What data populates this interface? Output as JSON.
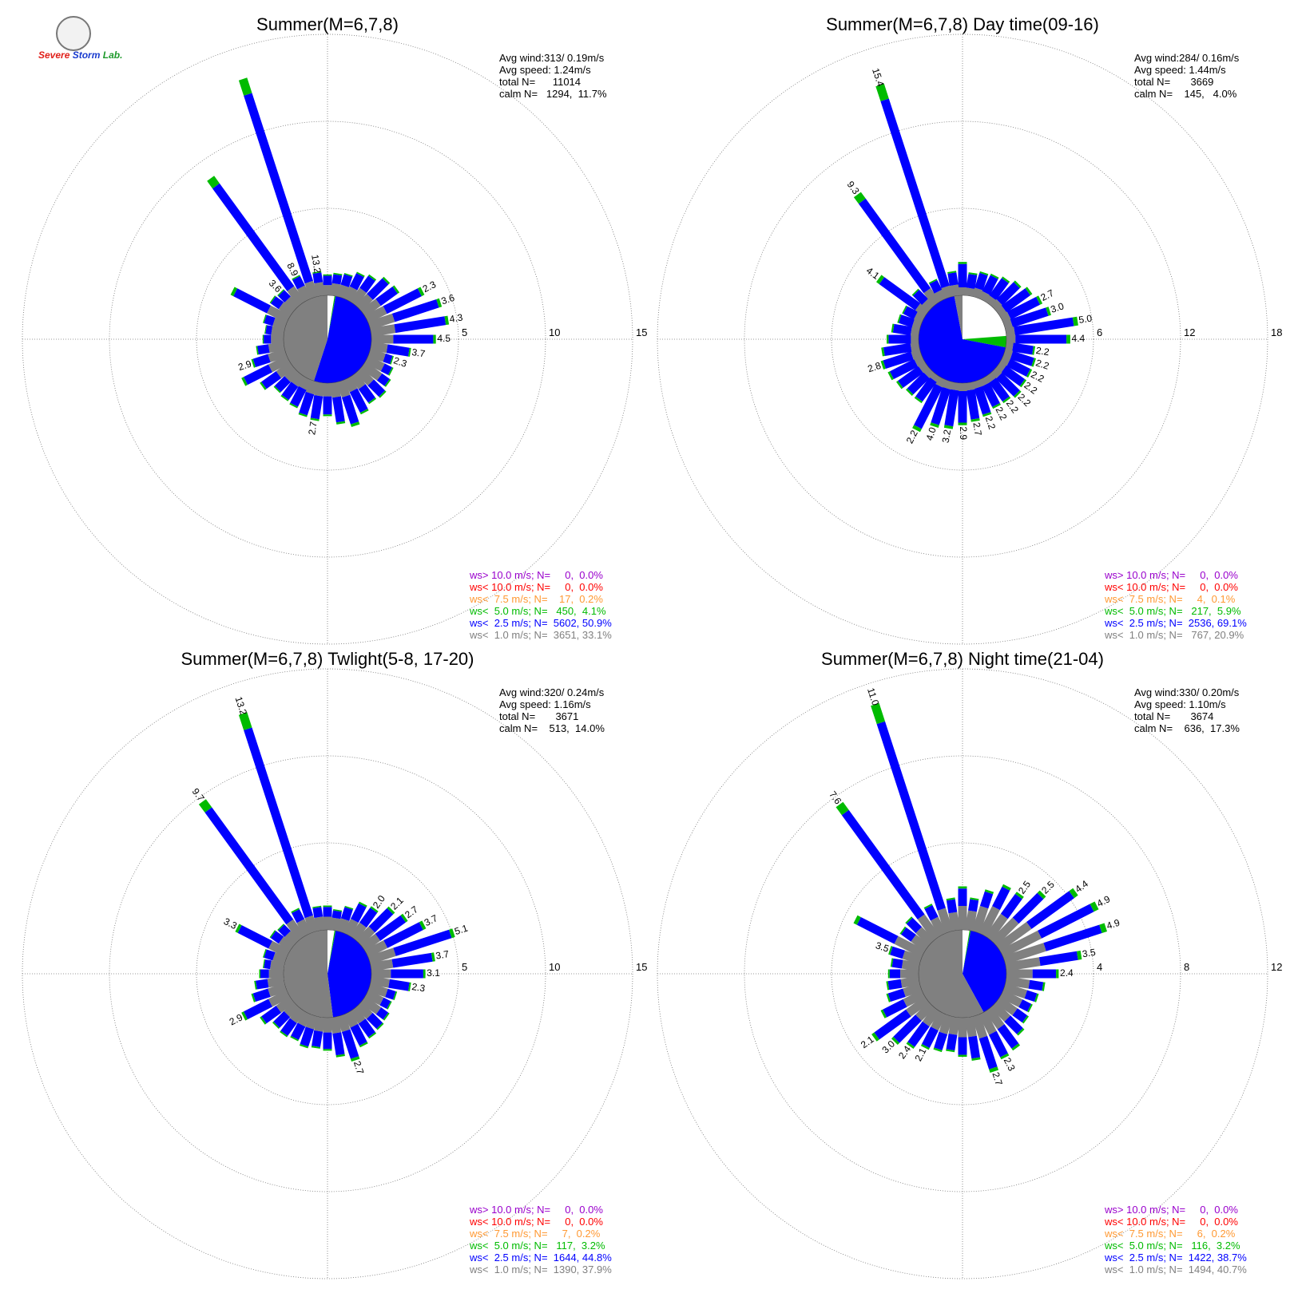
{
  "logo": {
    "text": "Severe Storm Lab.",
    "icon": "lab-seal-logo"
  },
  "colors": {
    "calm": "#808080",
    "cat1": "#808080",
    "cat2": "#0000ff",
    "cat3": "#00bb00",
    "cat4": "#ff9933",
    "cat5": "#ff0000",
    "cat6": "#9900cc",
    "grid": "#777777",
    "text": "#000000"
  },
  "chart_data": [
    {
      "type": "windrose",
      "title": "Summer(M=6,7,8)",
      "rmax": 15,
      "ring_ticks": [
        "5",
        "10",
        "15"
      ],
      "stats": [
        "Avg wind:313/ 0.19m/s",
        "Avg speed: 1.24m/s",
        "total N=      11014",
        "calm N=   1294,  11.7%"
      ],
      "legend": [
        {
          "text": "ws> 10.0 m/s; N=     0,  0.0%",
          "color": "#9900cc"
        },
        {
          "text": "ws< 10.0 m/s; N=     0,  0.0%",
          "color": "#ff0000"
        },
        {
          "text": "ws<  7.5 m/s; N=    17,  0.2%",
          "color": "#ff9933"
        },
        {
          "text": "ws<  5.0 m/s; N=   450,  4.1%",
          "color": "#00bb00"
        },
        {
          "text": "ws<  2.5 m/s; N=  5602, 50.9%",
          "color": "#0000ff"
        },
        {
          "text": "ws<  1.0 m/s; N=  3651, 33.1%",
          "color": "#808080"
        }
      ],
      "center_pie": [
        1.0,
        0.03,
        0.52,
        0.45
      ],
      "totals": [
        1.2,
        1.3,
        1.4,
        1.7,
        1.9,
        2.3,
        2.4,
        3.6,
        4.3,
        4.5,
        3.7,
        2.3,
        1.4,
        1.6,
        1.8,
        2.0,
        1.9,
        2.2,
        2.7,
        2.4,
        1.9,
        2.2,
        2.1,
        1.8,
        1.7,
        1.6,
        2.1,
        2.9,
        2.0,
        1.6,
        1.2,
        1.1,
        1.3,
        3.6,
        1.4,
        1.3,
        8.9,
        1.5,
        13.2,
        1.4
      ],
      "blue_frac": [
        0.45,
        0.4,
        0.45,
        0.5,
        0.45,
        0.55,
        0.5,
        0.62,
        0.62,
        0.65,
        0.62,
        0.55,
        0.3,
        0.3,
        0.3,
        0.45,
        0.5,
        0.6,
        0.6,
        0.6,
        0.55,
        0.6,
        0.6,
        0.6,
        0.55,
        0.5,
        0.5,
        0.55,
        0.45,
        0.4,
        0.35,
        0.3,
        0.4,
        0.6,
        0.4,
        0.4,
        0.82,
        0.4,
        0.86,
        0.4
      ],
      "green_frac": [
        0.06,
        0.06,
        0.05,
        0.05,
        0.05,
        0.05,
        0.05,
        0.05,
        0.04,
        0.04,
        0.04,
        0.04,
        0.05,
        0.05,
        0.05,
        0.05,
        0.05,
        0.05,
        0.06,
        0.05,
        0.05,
        0.05,
        0.05,
        0.05,
        0.05,
        0.05,
        0.05,
        0.05,
        0.05,
        0.05,
        0.05,
        0.05,
        0.05,
        0.05,
        0.05,
        0.05,
        0.06,
        0.05,
        0.07,
        0.05
      ],
      "bar_labels": [
        [
          7,
          "2.3"
        ],
        [
          8,
          "3.6"
        ],
        [
          9,
          "4.3"
        ],
        [
          10,
          "4.5"
        ],
        [
          11,
          "3.7"
        ],
        [
          12,
          "2.3"
        ],
        [
          21,
          "2.7"
        ],
        [
          28,
          "2.9"
        ],
        [
          35,
          "3.6"
        ],
        [
          37,
          "8.9"
        ],
        [
          39,
          "13.2"
        ]
      ]
    },
    {
      "type": "windrose",
      "title": "Summer(M=6,7,8) Day time(09-16)",
      "rmax": 18,
      "ring_ticks": [
        "6",
        "12",
        "18"
      ],
      "stats": [
        "Avg wind:284/ 0.16m/s",
        "Avg speed: 1.44m/s",
        "total N=       3669",
        "calm N=    145,   4.0%"
      ],
      "legend": [
        {
          "text": "ws> 10.0 m/s; N=     0,  0.0%",
          "color": "#9900cc"
        },
        {
          "text": "ws< 10.0 m/s; N=     0,  0.0%",
          "color": "#ff0000"
        },
        {
          "text": "ws<  7.5 m/s; N=     4,  0.1%",
          "color": "#ff9933"
        },
        {
          "text": "ws<  5.0 m/s; N=   217,  5.9%",
          "color": "#00bb00"
        },
        {
          "text": "ws<  2.5 m/s; N=  2536, 69.1%",
          "color": "#0000ff"
        },
        {
          "text": "ws<  1.0 m/s; N=   767, 20.9%",
          "color": "#808080"
        }
      ],
      "center_pie": [
        1.0,
        0.28,
        0.69,
        0.03
      ],
      "totals": [
        2.3,
        1.6,
        1.8,
        1.9,
        2.1,
        2.4,
        2.7,
        3.0,
        3.3,
        5.0,
        4.4,
        2.0,
        2.2,
        2.2,
        2.2,
        2.4,
        2.2,
        2.2,
        2.5,
        2.7,
        2.9,
        3.2,
        3.3,
        4.0,
        2.2,
        2.2,
        2.4,
        2.6,
        2.8,
        2.6,
        2.2,
        1.9,
        1.6,
        1.5,
        4.1,
        1.6,
        9.3,
        1.5,
        15.4,
        1.7
      ],
      "blue_frac": [
        0.7,
        0.6,
        0.6,
        0.65,
        0.7,
        0.7,
        0.75,
        0.75,
        0.78,
        0.82,
        0.8,
        0.7,
        0.7,
        0.7,
        0.72,
        0.72,
        0.72,
        0.72,
        0.75,
        0.75,
        0.75,
        0.78,
        0.78,
        0.8,
        0.75,
        0.72,
        0.72,
        0.72,
        0.72,
        0.72,
        0.7,
        0.65,
        0.6,
        0.55,
        0.75,
        0.55,
        0.82,
        0.5,
        0.88,
        0.5
      ],
      "green_frac": [
        0.06,
        0.07,
        0.06,
        0.06,
        0.06,
        0.06,
        0.06,
        0.06,
        0.06,
        0.06,
        0.06,
        0.06,
        0.06,
        0.06,
        0.06,
        0.06,
        0.06,
        0.06,
        0.06,
        0.06,
        0.06,
        0.06,
        0.06,
        0.06,
        0.06,
        0.06,
        0.06,
        0.06,
        0.06,
        0.06,
        0.06,
        0.06,
        0.06,
        0.06,
        0.06,
        0.06,
        0.06,
        0.06,
        0.07,
        0.06
      ],
      "bar_labels": [
        [
          7,
          "2.7"
        ],
        [
          8,
          "3.0"
        ],
        [
          9,
          "5.0"
        ],
        [
          10,
          "4.4"
        ],
        [
          11,
          "2.2"
        ],
        [
          12,
          "2.2"
        ],
        [
          13,
          "2.2"
        ],
        [
          14,
          "2.2"
        ],
        [
          15,
          "2.2"
        ],
        [
          16,
          "2.2"
        ],
        [
          17,
          "2.2"
        ],
        [
          18,
          "2.2"
        ],
        [
          19,
          "2.7"
        ],
        [
          20,
          "2.9"
        ],
        [
          21,
          "3.2"
        ],
        [
          22,
          "4.0"
        ],
        [
          23,
          "2.2"
        ],
        [
          28,
          "2.8"
        ],
        [
          34,
          "4.1"
        ],
        [
          36,
          "9.3"
        ],
        [
          38,
          "15.4"
        ]
      ]
    },
    {
      "type": "windrose",
      "title": "Summer(M=6,7,8) Twlight(5-8, 17-20)",
      "rmax": 15,
      "ring_ticks": [
        "5",
        "10",
        "15"
      ],
      "stats": [
        "Avg wind:320/ 0.24m/s",
        "Avg speed: 1.16m/s",
        "total N=       3671",
        "calm N=    513,  14.0%"
      ],
      "legend": [
        {
          "text": "ws> 10.0 m/s; N=     0,  0.0%",
          "color": "#9900cc"
        },
        {
          "text": "ws< 10.0 m/s; N=     0,  0.0%",
          "color": "#ff0000"
        },
        {
          "text": "ws<  7.5 m/s; N=     7,  0.2%",
          "color": "#ff9933"
        },
        {
          "text": "ws<  5.0 m/s; N=   117,  3.2%",
          "color": "#00bb00"
        },
        {
          "text": "ws<  2.5 m/s; N=  1644, 44.8%",
          "color": "#0000ff"
        },
        {
          "text": "ws<  1.0 m/s; N=  1390, 37.9%",
          "color": "#808080"
        }
      ],
      "center_pie": [
        1.0,
        0.03,
        0.45,
        0.52
      ],
      "totals": [
        1.4,
        1.2,
        1.5,
        2.0,
        2.1,
        2.7,
        3.0,
        3.7,
        5.1,
        3.7,
        3.1,
        2.3,
        1.6,
        1.5,
        1.7,
        1.8,
        1.9,
        2.1,
        2.7,
        2.3,
        1.9,
        1.8,
        1.9,
        1.7,
        1.8,
        1.7,
        2.1,
        2.9,
        2.0,
        1.7,
        1.4,
        1.2,
        1.3,
        3.3,
        1.4,
        1.3,
        9.7,
        1.6,
        13.2,
        1.4
      ],
      "blue_frac": [
        0.4,
        0.35,
        0.45,
        0.5,
        0.5,
        0.55,
        0.6,
        0.62,
        0.66,
        0.62,
        0.6,
        0.5,
        0.3,
        0.3,
        0.3,
        0.45,
        0.5,
        0.55,
        0.6,
        0.55,
        0.5,
        0.5,
        0.55,
        0.5,
        0.5,
        0.5,
        0.5,
        0.55,
        0.45,
        0.4,
        0.35,
        0.3,
        0.4,
        0.6,
        0.4,
        0.4,
        0.82,
        0.4,
        0.86,
        0.4
      ],
      "green_frac": [
        0.06,
        0.06,
        0.05,
        0.05,
        0.05,
        0.05,
        0.05,
        0.05,
        0.04,
        0.04,
        0.04,
        0.04,
        0.05,
        0.05,
        0.05,
        0.05,
        0.05,
        0.05,
        0.06,
        0.05,
        0.05,
        0.05,
        0.05,
        0.05,
        0.05,
        0.05,
        0.05,
        0.05,
        0.05,
        0.05,
        0.05,
        0.05,
        0.05,
        0.05,
        0.05,
        0.05,
        0.06,
        0.05,
        0.07,
        0.05
      ],
      "bar_labels": [
        [
          4,
          "2.0"
        ],
        [
          5,
          "2.1"
        ],
        [
          6,
          "2.7"
        ],
        [
          7,
          "3.7"
        ],
        [
          8,
          "5.1"
        ],
        [
          9,
          "3.7"
        ],
        [
          10,
          "3.1"
        ],
        [
          11,
          "2.3"
        ],
        [
          18,
          "2.7"
        ],
        [
          27,
          "2.9"
        ],
        [
          33,
          "3.3"
        ],
        [
          36,
          "9.7"
        ],
        [
          38,
          "13.2"
        ]
      ]
    },
    {
      "type": "windrose",
      "title": "Summer(M=6,7,8) Night time(21-04)",
      "rmax": 12,
      "ring_ticks": [
        "4",
        "8",
        "12"
      ],
      "stats": [
        "Avg wind:330/ 0.20m/s",
        "Avg speed: 1.10m/s",
        "total N=       3674",
        "calm N=    636,  17.3%"
      ],
      "legend": [
        {
          "text": "ws> 10.0 m/s; N=     0,  0.0%",
          "color": "#9900cc"
        },
        {
          "text": "ws< 10.0 m/s; N=     0,  0.0%",
          "color": "#ff0000"
        },
        {
          "text": "ws<  7.5 m/s; N=     6,  0.2%",
          "color": "#ff9933"
        },
        {
          "text": "ws<  5.0 m/s; N=   116,  3.2%",
          "color": "#00bb00"
        },
        {
          "text": "ws<  2.5 m/s; N=  1422, 38.7%",
          "color": "#0000ff"
        },
        {
          "text": "ws<  1.0 m/s; N=  1494, 40.7%",
          "color": "#808080"
        }
      ],
      "center_pie": [
        1.0,
        0.03,
        0.39,
        0.58
      ],
      "totals": [
        2.0,
        1.5,
        2.0,
        2.5,
        2.5,
        3.2,
        4.4,
        4.9,
        4.9,
        3.5,
        2.4,
        1.8,
        1.6,
        1.5,
        1.6,
        1.8,
        2.2,
        2.3,
        2.7,
        2.0,
        1.8,
        1.6,
        1.7,
        1.8,
        2.1,
        2.4,
        3.0,
        2.1,
        1.6,
        1.5,
        1.4,
        1.3,
        1.5,
        3.5,
        1.4,
        1.5,
        7.6,
        1.5,
        11.0,
        1.5
      ],
      "blue_frac": [
        0.4,
        0.35,
        0.35,
        0.4,
        0.45,
        0.5,
        0.55,
        0.55,
        0.55,
        0.5,
        0.45,
        0.35,
        0.3,
        0.3,
        0.35,
        0.45,
        0.5,
        0.5,
        0.55,
        0.5,
        0.45,
        0.45,
        0.45,
        0.5,
        0.55,
        0.6,
        0.6,
        0.5,
        0.45,
        0.4,
        0.35,
        0.35,
        0.4,
        0.55,
        0.4,
        0.4,
        0.78,
        0.4,
        0.82,
        0.4
      ],
      "green_frac": [
        0.05,
        0.05,
        0.05,
        0.05,
        0.05,
        0.05,
        0.05,
        0.05,
        0.05,
        0.05,
        0.05,
        0.05,
        0.05,
        0.05,
        0.05,
        0.05,
        0.05,
        0.05,
        0.06,
        0.05,
        0.05,
        0.05,
        0.05,
        0.05,
        0.05,
        0.05,
        0.05,
        0.05,
        0.05,
        0.05,
        0.05,
        0.05,
        0.05,
        0.05,
        0.05,
        0.05,
        0.06,
        0.05,
        0.08,
        0.05
      ],
      "bar_labels": [
        [
          4,
          "2.5"
        ],
        [
          5,
          "2.5"
        ],
        [
          6,
          "4.4"
        ],
        [
          7,
          "4.9"
        ],
        [
          8,
          "4.9"
        ],
        [
          9,
          "3.5"
        ],
        [
          10,
          "2.4"
        ],
        [
          17,
          "2.3"
        ],
        [
          18,
          "2.7"
        ],
        [
          23,
          "2.1"
        ],
        [
          24,
          "2.4"
        ],
        [
          25,
          "3.0"
        ],
        [
          26,
          "2.1"
        ],
        [
          32,
          "3.5"
        ],
        [
          36,
          "7.6"
        ],
        [
          38,
          "11.0"
        ]
      ]
    }
  ]
}
